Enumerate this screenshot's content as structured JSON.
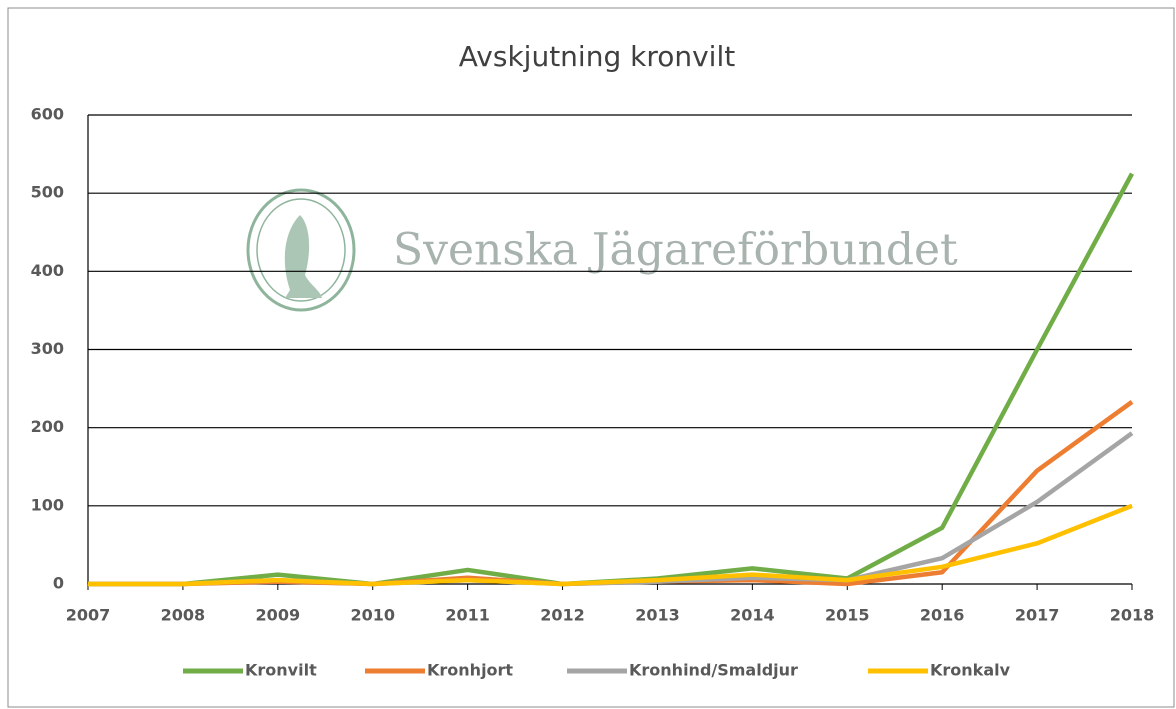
{
  "chart_data": {
    "type": "line",
    "title": "Avskjutning kronvilt",
    "watermark": "Svenska Jägareförbundet",
    "categories": [
      "2007",
      "2008",
      "2009",
      "2010",
      "2011",
      "2012",
      "2013",
      "2014",
      "2015",
      "2016",
      "2017",
      "2018"
    ],
    "series": [
      {
        "name": "Kronvilt",
        "color": "#70ad47",
        "values": [
          0,
          0,
          12,
          0,
          18,
          0,
          7,
          20,
          7,
          72,
          300,
          525
        ]
      },
      {
        "name": "Kronhjort",
        "color": "#ed7d31",
        "values": [
          0,
          0,
          3,
          0,
          8,
          0,
          3,
          5,
          0,
          15,
          145,
          233
        ]
      },
      {
        "name": "Kronhind/Smaldjur",
        "color": "#a5a5a5",
        "values": [
          0,
          0,
          5,
          0,
          5,
          0,
          3,
          8,
          5,
          33,
          105,
          193
        ]
      },
      {
        "name": "Kronkalv",
        "color": "#ffc000",
        "values": [
          0,
          0,
          5,
          0,
          5,
          0,
          5,
          12,
          5,
          22,
          52,
          100
        ]
      }
    ],
    "ylim": [
      0,
      600
    ],
    "yticks": [
      0,
      100,
      200,
      300,
      400,
      500,
      600
    ],
    "grid": true,
    "legend": "bottom"
  }
}
